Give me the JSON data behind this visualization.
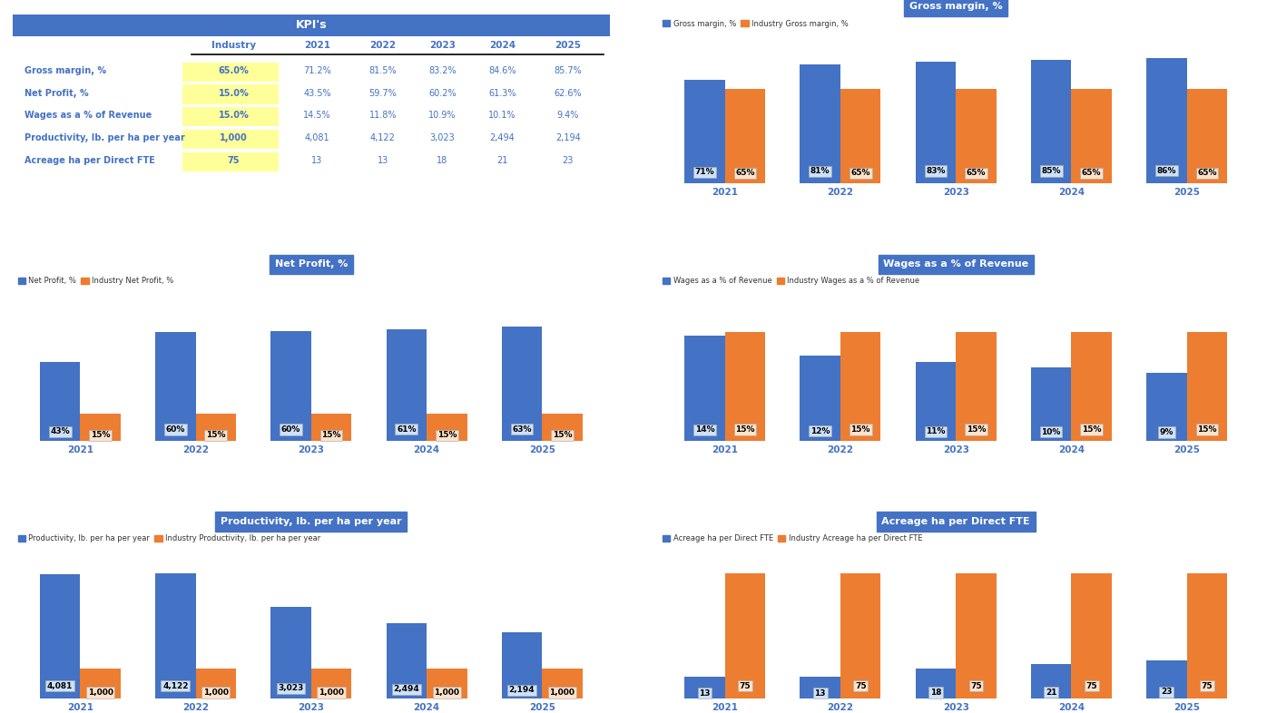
{
  "kpi_rows": [
    {
      "label": "Gross margin, %",
      "industry": "65.0%",
      "values": [
        "71.2%",
        "81.5%",
        "83.2%",
        "84.6%",
        "85.7%"
      ]
    },
    {
      "label": "Net Profit, %",
      "industry": "15.0%",
      "values": [
        "43.5%",
        "59.7%",
        "60.2%",
        "61.3%",
        "62.6%"
      ]
    },
    {
      "label": "Wages as a % of Revenue",
      "industry": "15.0%",
      "values": [
        "14.5%",
        "11.8%",
        "10.9%",
        "10.1%",
        "9.4%"
      ]
    },
    {
      "label": "Productivity, lb. per ha per year",
      "industry": "1,000",
      "values": [
        "4,081",
        "4,122",
        "3,023",
        "2,494",
        "2,194"
      ]
    },
    {
      "label": "Acreage ha per Direct FTE",
      "industry": "75",
      "values": [
        "13",
        "13",
        "18",
        "21",
        "23"
      ]
    }
  ],
  "years": [
    "2021",
    "2022",
    "2023",
    "2024",
    "2025"
  ],
  "blue_color": "#4472C4",
  "orange_color": "#ED7D31",
  "gross_margin": {
    "title": "Gross margin, %",
    "blue_label": "Gross margin, %",
    "orange_label": "Industry Gross margin, %",
    "blue_values": [
      71.2,
      81.5,
      83.2,
      84.6,
      85.7
    ],
    "orange_values": [
      65.0,
      65.0,
      65.0,
      65.0,
      65.0
    ],
    "blue_labels": [
      "71%",
      "81%",
      "83%",
      "85%",
      "86%"
    ],
    "orange_labels": [
      "65%",
      "65%",
      "65%",
      "65%",
      "65%"
    ],
    "ylim_factor": 1.35
  },
  "net_profit": {
    "title": "Net Profit, %",
    "blue_label": "Net Profit, %",
    "orange_label": "Industry Net Profit, %",
    "blue_values": [
      43.5,
      59.7,
      60.2,
      61.3,
      62.6
    ],
    "orange_values": [
      15.0,
      15.0,
      15.0,
      15.0,
      15.0
    ],
    "blue_labels": [
      "43%",
      "60%",
      "60%",
      "61%",
      "63%"
    ],
    "orange_labels": [
      "15%",
      "15%",
      "15%",
      "15%",
      "15%"
    ],
    "ylim_factor": 1.48
  },
  "wages": {
    "title": "Wages as a % of Revenue",
    "blue_label": "Wages as a % of Revenue",
    "orange_label": "Industry Wages as a % of Revenue",
    "blue_values": [
      14.5,
      11.8,
      10.9,
      10.1,
      9.4
    ],
    "orange_values": [
      15.0,
      15.0,
      15.0,
      15.0,
      15.0
    ],
    "blue_labels": [
      "14%",
      "12%",
      "11%",
      "10%",
      "9%"
    ],
    "orange_labels": [
      "15%",
      "15%",
      "15%",
      "15%",
      "15%"
    ],
    "ylim_factor": 1.55
  },
  "productivity": {
    "title": "Productivity, lb. per ha per year",
    "blue_label": "Productivity, lb. per ha per year",
    "orange_label": "Industry Productivity, lb. per ha per year",
    "blue_values": [
      4081,
      4122,
      3023,
      2494,
      2194
    ],
    "orange_values": [
      1000,
      1000,
      1000,
      1000,
      1000
    ],
    "blue_labels": [
      "4,081",
      "4,122",
      "3,023",
      "2,494",
      "2,194"
    ],
    "orange_labels": [
      "1,000",
      "1,000",
      "1,000",
      "1,000",
      "1,000"
    ],
    "ylim_factor": 1.35
  },
  "acreage": {
    "title": "Acreage ha per Direct FTE",
    "blue_label": "Acreage ha per Direct FTE",
    "orange_label": "Industry Acreage ha per Direct FTE",
    "blue_values": [
      13,
      13,
      18,
      21,
      23
    ],
    "orange_values": [
      75,
      75,
      75,
      75,
      75
    ],
    "blue_labels": [
      "13",
      "13",
      "18",
      "21",
      "23"
    ],
    "orange_labels": [
      "75",
      "75",
      "75",
      "75",
      "75"
    ],
    "ylim_factor": 1.35
  }
}
